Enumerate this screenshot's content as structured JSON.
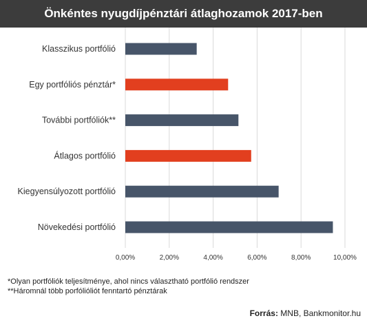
{
  "chart_data": {
    "type": "bar",
    "orientation": "horizontal",
    "title": "Önkéntes nyugdíjpénztári átlaghozamok 2017-ben",
    "categories": [
      "Klasszikus portfólió",
      "Egy portfóliós pénztár*",
      "További portfóliók**",
      "Átlagos portfólió",
      "Kiegyensúlyozott portfólió",
      "Növekedési portfólió"
    ],
    "values": [
      3.25,
      4.68,
      5.15,
      5.73,
      6.98,
      9.45
    ],
    "colors": [
      "#475569",
      "#e23f1f",
      "#475569",
      "#e23f1f",
      "#475569",
      "#475569"
    ],
    "xlim": [
      0,
      10
    ],
    "xticks": [
      "0,00%",
      "2,00%",
      "4,00%",
      "6,00%",
      "8,00%",
      "10,00%"
    ],
    "xtick_values": [
      0,
      2,
      4,
      6,
      8,
      10
    ],
    "grid": "vertical"
  },
  "footnotes": [
    "*Olyan portfóliók teljesítménye, ahol nincs választható portfólió rendszer",
    "**Háromnál több porfólióliót fenntartó pénztárak"
  ],
  "source": {
    "label": "Forrás:",
    "text": "MNB, Bankmonitor.hu"
  }
}
